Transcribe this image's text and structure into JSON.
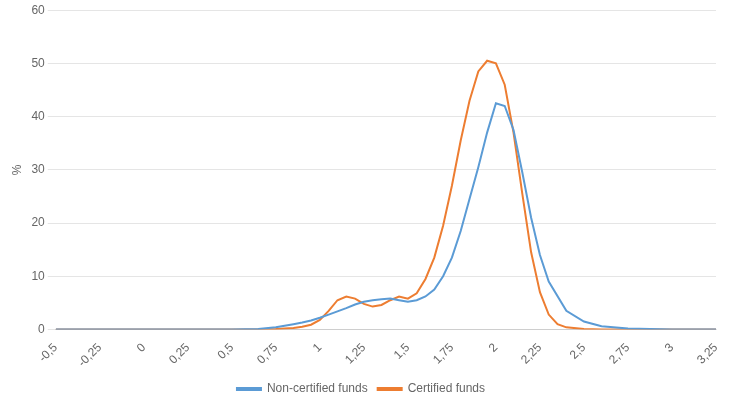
{
  "chart_data": {
    "type": "line",
    "ylabel": "%",
    "xlim": [
      -0.5,
      3.25
    ],
    "ylim": [
      0,
      60
    ],
    "xticks": [
      {
        "value": -0.5,
        "label": "-0,5"
      },
      {
        "value": -0.25,
        "label": "-0,25"
      },
      0,
      {
        "value": 0.25,
        "label": "0,25"
      },
      {
        "value": 0.5,
        "label": "0,5"
      },
      {
        "value": 0.75,
        "label": "0,75"
      },
      1,
      {
        "value": 1.25,
        "label": "1,25"
      },
      {
        "value": 1.5,
        "label": "1,5"
      },
      {
        "value": 1.75,
        "label": "1,75"
      },
      2,
      {
        "value": 2.25,
        "label": "2,25"
      },
      {
        "value": 2.5,
        "label": "2,5"
      },
      {
        "value": 2.75,
        "label": "2,75"
      },
      3,
      {
        "value": 3.25,
        "label": "3,25"
      }
    ],
    "yticks": [
      0,
      10,
      20,
      30,
      40,
      50,
      60
    ],
    "grid": "y",
    "legend": "bottom",
    "series": [
      {
        "name": "Non-certified funds",
        "color": "#5B9BD5",
        "x": [
          -0.5,
          -0.25,
          0.0,
          0.25,
          0.5,
          0.65,
          0.75,
          0.8,
          0.85,
          0.9,
          0.95,
          1.0,
          1.05,
          1.1,
          1.15,
          1.2,
          1.25,
          1.3,
          1.35,
          1.4,
          1.45,
          1.5,
          1.55,
          1.6,
          1.65,
          1.7,
          1.75,
          1.8,
          1.85,
          1.9,
          1.95,
          2.0,
          2.05,
          2.1,
          2.15,
          2.2,
          2.25,
          2.3,
          2.4,
          2.5,
          2.6,
          2.75,
          3.0,
          3.25
        ],
        "values": [
          0.0,
          0.0,
          0.0,
          0.0,
          0.0,
          0.1,
          0.4,
          0.7,
          1.0,
          1.3,
          1.7,
          2.2,
          2.8,
          3.4,
          4.0,
          4.7,
          5.2,
          5.5,
          5.7,
          5.8,
          5.5,
          5.2,
          5.5,
          6.2,
          7.5,
          10.0,
          13.5,
          18.5,
          24.5,
          30.5,
          37.0,
          42.5,
          42.0,
          37.5,
          29.5,
          21.0,
          14.0,
          9.0,
          3.5,
          1.5,
          0.6,
          0.2,
          0.0,
          0.0
        ]
      },
      {
        "name": "Certified funds",
        "color": "#ED7D31",
        "x": [
          -0.5,
          -0.25,
          0.0,
          0.25,
          0.5,
          0.65,
          0.75,
          0.8,
          0.85,
          0.9,
          0.95,
          1.0,
          1.05,
          1.1,
          1.15,
          1.2,
          1.25,
          1.3,
          1.35,
          1.4,
          1.45,
          1.5,
          1.55,
          1.6,
          1.65,
          1.7,
          1.75,
          1.8,
          1.85,
          1.9,
          1.95,
          2.0,
          2.05,
          2.1,
          2.15,
          2.2,
          2.25,
          2.3,
          2.35,
          2.4,
          2.5,
          2.6,
          2.75,
          3.0,
          3.25
        ],
        "values": [
          0.0,
          0.0,
          0.0,
          0.0,
          0.0,
          0.0,
          0.1,
          0.2,
          0.3,
          0.5,
          0.9,
          1.8,
          3.5,
          5.5,
          6.2,
          5.8,
          4.8,
          4.3,
          4.6,
          5.5,
          6.2,
          5.8,
          6.8,
          9.5,
          13.5,
          19.5,
          27.0,
          35.5,
          43.0,
          48.5,
          50.5,
          50.0,
          46.0,
          37.0,
          25.5,
          14.5,
          7.0,
          2.8,
          1.0,
          0.4,
          0.1,
          0.0,
          0.0,
          0.0,
          0.0
        ]
      }
    ]
  }
}
